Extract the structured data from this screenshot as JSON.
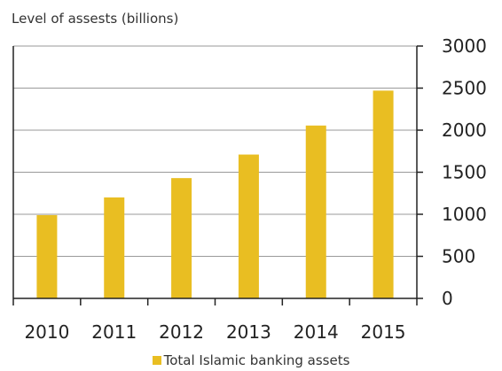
{
  "chart_data": {
    "type": "bar",
    "ylabel": "Level of assests (billions)",
    "categories": [
      "2010",
      "2011",
      "2012",
      "2013",
      "2014",
      "2015"
    ],
    "series": [
      {
        "name": "Total Islamic banking assets",
        "values": [
          990,
          1200,
          1430,
          1710,
          2055,
          2470
        ],
        "color": "#e9be22"
      }
    ],
    "ylim": [
      0,
      3000
    ],
    "yticks": [
      "0",
      "500",
      "1000",
      "1500",
      "2000",
      "2500",
      "3000"
    ],
    "y_axis_side": "right",
    "grid": true,
    "legend": "bottom-center"
  }
}
